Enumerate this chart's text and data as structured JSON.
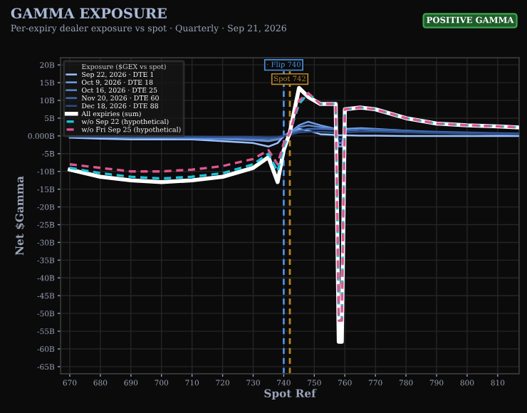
{
  "chart_data": {
    "type": "line",
    "title": "GAMMA EXPOSURE",
    "subtitle": "Per-expiry dealer exposure vs spot · Quarterly · Sep 21, 2026",
    "xlabel": "Spot Ref",
    "ylabel": "Net $Gamma",
    "legend_title": "Exposure ($GEX vs spot)",
    "annotations": [
      "POSITIVE GAMMA"
    ],
    "x": [
      670,
      680,
      690,
      700,
      710,
      720,
      730,
      735,
      738,
      740,
      742,
      745,
      748,
      752,
      757,
      758,
      759,
      760,
      765,
      770,
      780,
      790,
      800,
      810,
      817
    ],
    "series": [
      {
        "name": "Sep 22, 2026 · DTE 1",
        "color": "#9cc3ff",
        "values": [
          -0.5,
          -0.8,
          -1,
          -1,
          -1,
          -1.5,
          -2,
          -3,
          -2,
          0,
          1,
          2,
          1.5,
          0.5,
          0.3,
          0.2,
          0.2,
          0.2,
          0.1,
          0.1,
          0,
          0,
          0,
          0,
          0
        ]
      },
      {
        "name": "Oct 9, 2026 · DTE 18",
        "color": "#6f9fe6",
        "values": [
          -0.3,
          -0.4,
          -0.5,
          -0.6,
          -0.7,
          -0.9,
          -1.2,
          -1.5,
          -1,
          0,
          1,
          3,
          4,
          3,
          2,
          -3,
          -3,
          2,
          2.2,
          2,
          1.5,
          1,
          0.8,
          0.6,
          0.5
        ]
      },
      {
        "name": "Oct 16, 2026 · DTE 25",
        "color": "#5a86d0",
        "values": [
          -0.2,
          -0.3,
          -0.4,
          -0.5,
          -0.6,
          -0.8,
          -1,
          -1.2,
          -0.8,
          0,
          0.8,
          2.5,
          3,
          2.5,
          2,
          -2,
          -2,
          1.5,
          1.8,
          1.6,
          1.2,
          0.9,
          0.7,
          0.5,
          0.4
        ]
      },
      {
        "name": "Nov 20, 2026 · DTE 60",
        "color": "#4068ad",
        "values": [
          -0.1,
          -0.2,
          -0.2,
          -0.3,
          -0.3,
          -0.4,
          -0.5,
          -0.6,
          -0.5,
          0,
          0.5,
          1.5,
          2,
          2,
          1.8,
          -1,
          -1,
          1.5,
          1.8,
          1.8,
          1.5,
          1.2,
          1,
          0.8,
          0.7
        ]
      },
      {
        "name": "Dec 18, 2026 · DTE 88",
        "color": "#2c4c85",
        "values": [
          -0.1,
          -0.1,
          -0.2,
          -0.2,
          -0.2,
          -0.3,
          -0.3,
          -0.4,
          -0.3,
          0,
          0.3,
          1,
          1.2,
          1.2,
          1,
          -1,
          -1,
          1,
          1.2,
          1.2,
          1,
          0.8,
          0.7,
          0.6,
          0.5
        ]
      },
      {
        "name": "All expiries (sum)",
        "color": "#ffffff",
        "line_style": "solid",
        "values": [
          -9.5,
          -11.5,
          -12.5,
          -13,
          -12.5,
          -11.5,
          -9,
          -6,
          -13,
          -4,
          1,
          13.5,
          11,
          9,
          9,
          -58,
          -58,
          7.5,
          8,
          7.5,
          5,
          3.5,
          3,
          2.7,
          2.4
        ]
      },
      {
        "name": "w/o Sep 22 (hypothetical)",
        "color": "#19c6dc",
        "line_style": "dashed",
        "values": [
          -9,
          -10.5,
          -11.5,
          -12,
          -11.5,
          -10.5,
          -8,
          -5,
          -10,
          -3,
          1,
          9,
          12,
          9,
          9,
          -52,
          -52,
          7.5,
          8,
          7.5,
          5,
          3.5,
          3,
          2.7,
          2.4
        ]
      },
      {
        "name": "w/o Fri Sep 25 (hypothetical)",
        "color": "#e0568f",
        "line_style": "dashed",
        "values": [
          -8,
          -9,
          -10,
          -10,
          -9.5,
          -8.5,
          -6.5,
          -4,
          -8,
          -2,
          1,
          10,
          12,
          9,
          9,
          -52,
          -52,
          7.5,
          8,
          7.5,
          5,
          3.5,
          3,
          2.7,
          2.4
        ]
      }
    ],
    "ref_lines": [
      {
        "axis": "x",
        "value": 740,
        "label": "· Flip 740",
        "color": "#4a90e2",
        "line_style": "dashed"
      },
      {
        "axis": "x",
        "value": 742,
        "label": "Spot 742",
        "color": "#b8862b",
        "line_style": "dashed"
      }
    ],
    "xlim": [
      667,
      817
    ],
    "ylim": [
      -67,
      22
    ],
    "xticks": [
      670,
      680,
      690,
      700,
      710,
      720,
      730,
      740,
      750,
      760,
      770,
      780,
      790,
      800,
      810
    ],
    "yticks": [
      {
        "value": 20,
        "label": "20B"
      },
      {
        "value": 15,
        "label": "15B"
      },
      {
        "value": 10,
        "label": "10B"
      },
      {
        "value": 5,
        "label": "5B"
      },
      {
        "value": 0,
        "label": "0.000B"
      },
      {
        "value": -5,
        "label": "-5B"
      },
      {
        "value": -10,
        "label": "-10B"
      },
      {
        "value": -15,
        "label": "-15B"
      },
      {
        "value": -20,
        "label": "-20B"
      },
      {
        "value": -25,
        "label": "-25B"
      },
      {
        "value": -30,
        "label": "-30B"
      },
      {
        "value": -35,
        "label": "-35B"
      },
      {
        "value": -40,
        "label": "-40B"
      },
      {
        "value": -45,
        "label": "-45B"
      },
      {
        "value": -50,
        "label": "-50B"
      },
      {
        "value": -55,
        "label": "-55B"
      },
      {
        "value": -60,
        "label": "-60B"
      },
      {
        "value": -65,
        "label": "-65B"
      }
    ],
    "grid": true,
    "legend": "top left",
    "marker": "none"
  }
}
